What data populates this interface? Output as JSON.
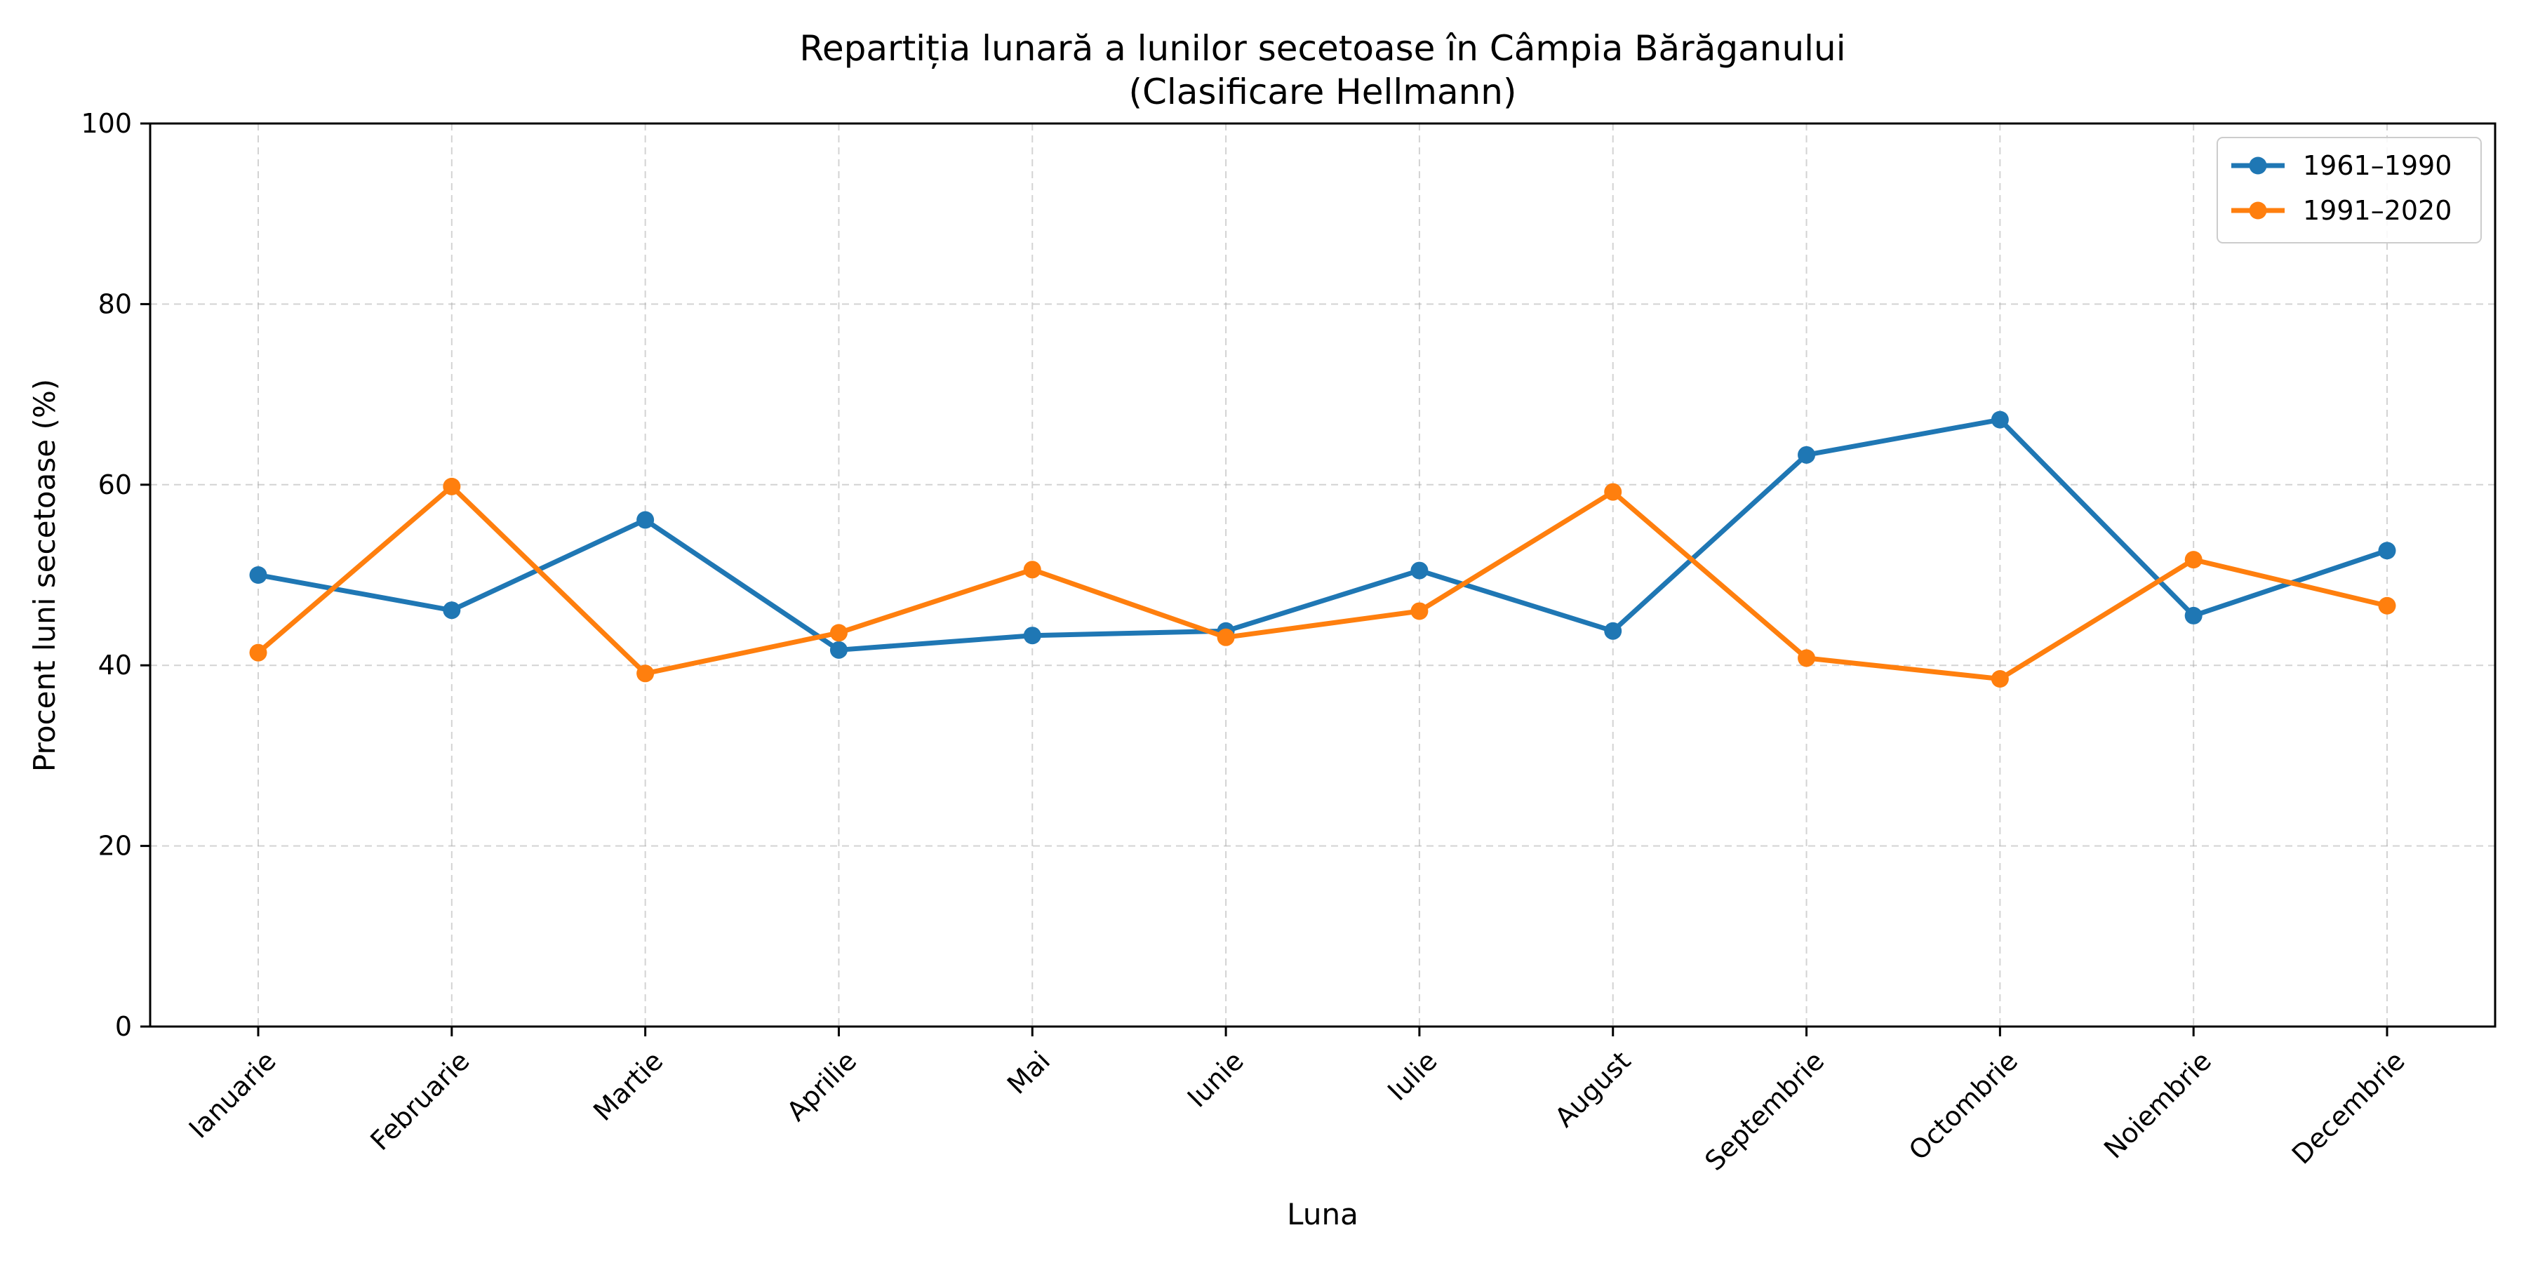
{
  "chart_data": {
    "type": "line",
    "title_line1": "Repartiția lunară a lunilor secetoase în Câmpia Bărăganului",
    "title_line2": "(Clasificare Hellmann)",
    "xlabel": "Luna",
    "ylabel": "Procent luni secetoase (%)",
    "ylim": [
      0,
      100
    ],
    "yticks": [
      0,
      20,
      40,
      60,
      80,
      100
    ],
    "grid": true,
    "legend_position": "top-right",
    "categories": [
      "Ianuarie",
      "Februarie",
      "Martie",
      "Aprilie",
      "Mai",
      "Iunie",
      "Iulie",
      "August",
      "Septembrie",
      "Octombrie",
      "Noiembrie",
      "Decembrie"
    ],
    "series": [
      {
        "name": "1961–1990",
        "color": "#1f77b4",
        "values": [
          50.0,
          46.1,
          56.1,
          41.7,
          43.3,
          43.8,
          50.5,
          43.8,
          63.3,
          67.2,
          45.5,
          52.7
        ]
      },
      {
        "name": "1991–2020",
        "color": "#ff7f0e",
        "values": [
          41.4,
          59.8,
          39.1,
          43.6,
          50.6,
          43.1,
          46.0,
          59.2,
          40.8,
          38.5,
          51.7,
          46.6
        ]
      }
    ]
  }
}
